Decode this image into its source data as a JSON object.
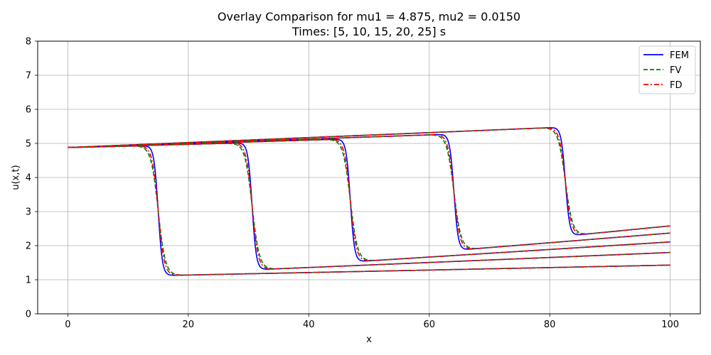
{
  "chart_data": {
    "type": "line",
    "title": "Overlay Comparison for mu1 = 4.875, mu2 = 0.0150",
    "subtitle": "Times: [5, 10, 15, 20, 25] s",
    "xlabel": "x",
    "ylabel": "u(x,t)",
    "xlim": [
      -5,
      105
    ],
    "ylim": [
      0,
      8
    ],
    "xticks": [
      0,
      20,
      40,
      60,
      80,
      100
    ],
    "yticks": [
      0,
      1,
      2,
      3,
      4,
      5,
      6,
      7,
      8
    ],
    "grid": true,
    "legend_position": "top-right",
    "times": [
      5,
      10,
      15,
      20,
      25
    ],
    "series": [
      {
        "name": "FEM",
        "color": "#0000ff",
        "dash": "solid",
        "shock_width": 0.35
      },
      {
        "name": "FV",
        "color": "#008000",
        "dash": "dashed",
        "shock_width": 0.6
      },
      {
        "name": "FD",
        "color": "#ff0000",
        "dash": "dashdot",
        "shock_width": 0.5
      }
    ],
    "profiles": [
      {
        "time": 5,
        "left": [
          [
            0,
            4.88
          ],
          [
            15,
            4.94
          ]
        ],
        "shock_x": 15.0,
        "right": [
          [
            15,
            1.12
          ],
          [
            100,
            1.43
          ]
        ]
      },
      {
        "time": 10,
        "left": [
          [
            0,
            4.88
          ],
          [
            30,
            5.02
          ]
        ],
        "shock_x": 30.6,
        "right": [
          [
            30.6,
            1.29
          ],
          [
            100,
            1.8
          ]
        ]
      },
      {
        "time": 15,
        "left": [
          [
            0,
            4.88
          ],
          [
            46,
            5.13
          ]
        ],
        "shock_x": 46.9,
        "right": [
          [
            46.9,
            1.52
          ],
          [
            100,
            2.11
          ]
        ]
      },
      {
        "time": 20,
        "left": [
          [
            0,
            4.88
          ],
          [
            63,
            5.27
          ]
        ],
        "shock_x": 64.1,
        "right": [
          [
            64.1,
            1.86
          ],
          [
            100,
            2.37
          ]
        ]
      },
      {
        "time": 25,
        "left": [
          [
            0,
            4.88
          ],
          [
            81,
            5.47
          ]
        ],
        "shock_x": 82.6,
        "right": [
          [
            82.6,
            2.28
          ],
          [
            100,
            2.58
          ]
        ]
      }
    ]
  }
}
